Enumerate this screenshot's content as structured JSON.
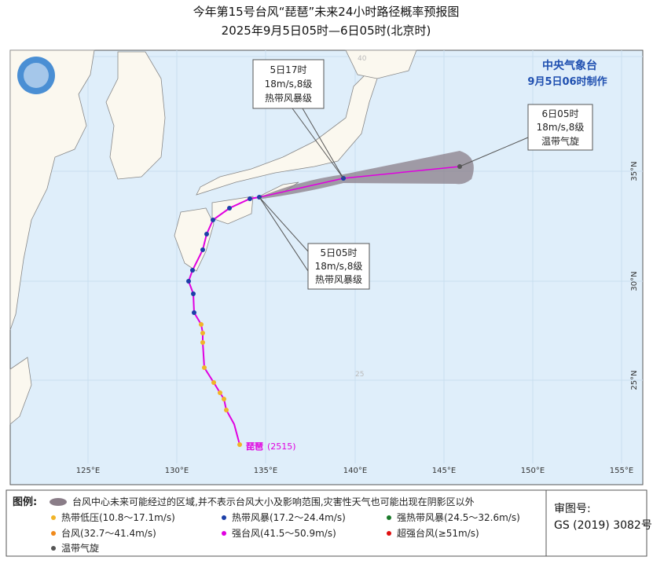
{
  "header": {
    "title": "今年第15号台风“琵琶”未来24小时路径概率预报图",
    "subtitle": "2025年9月5日05时—6日05时(北京时)"
  },
  "agency": {
    "name": "中央气象台",
    "issued": "9月5日06时制作"
  },
  "callouts": [
    {
      "time": "5日17时",
      "wind": "18m/s,8级",
      "level": "热带风暴级"
    },
    {
      "time": "6日05时",
      "wind": "18m/s,8级",
      "level": "温带气旋"
    },
    {
      "time": "5日05时",
      "wind": "18m/s,8级",
      "level": "热带风暴级"
    }
  ],
  "storm_label": {
    "name": "琵琶",
    "code": "(2515)"
  },
  "lon_labels": [
    "125°E",
    "130°E",
    "135°E",
    "140°E",
    "145°E",
    "150°E",
    "155°E"
  ],
  "lat_labels": [
    "35°N",
    "30°N",
    "25°N"
  ],
  "grid_labels": [
    "40",
    "25"
  ],
  "legend": {
    "title": "图例:",
    "area": "台风中心未来可能经过的区域,并不表示台风大小及影响范围,灾害性天气也可能出现在阴影区以外",
    "items": [
      "热带低压(10.8～17.1m/s)",
      "热带风暴(17.2～24.4m/s)",
      "强热带风暴(24.5～32.6m/s)",
      "台风(32.7～41.4m/s)",
      "强台风(41.5～50.9m/s)",
      "超强台风(≥51m/s)",
      "温带气旋"
    ]
  },
  "review": {
    "label": "审图号:",
    "number": "GS (2019) 3082号"
  }
}
